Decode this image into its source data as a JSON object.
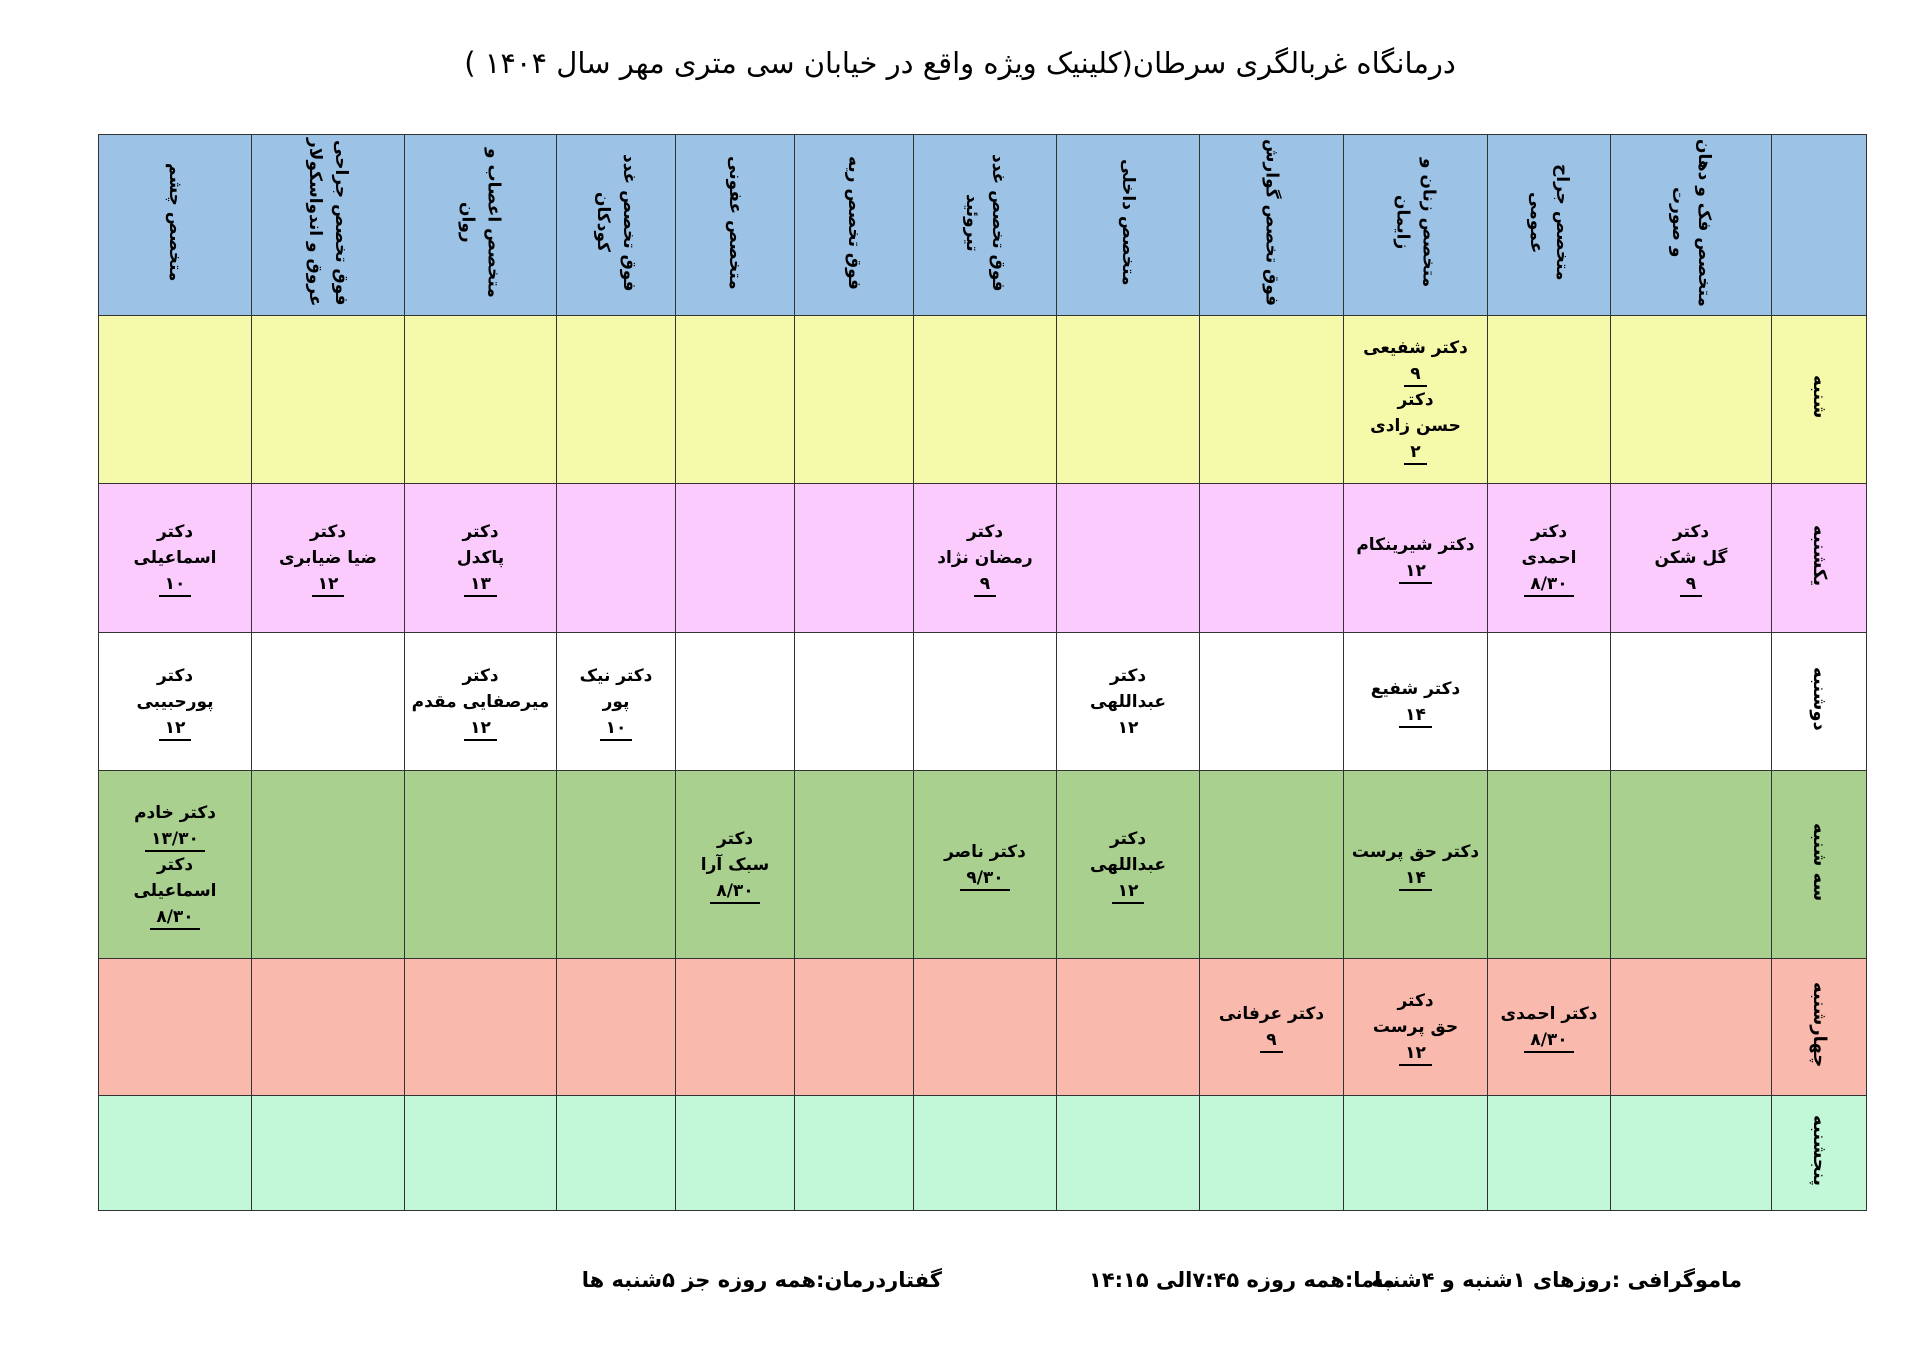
{
  "title": "درمانگاه غربالگری سرطان(کلینیک ویژه واقع در خیابان سی متری  مهر سال ۱۴۰۴  )",
  "headers": [
    "",
    "متخصص فک و دهان و صورت",
    "متخصص جراح عمومی",
    "متخصص زنان و زایمان",
    "فوق تخصص گوارش",
    "متخصص داخلی",
    "فوق تخصص غدد تیروئید",
    "فوق تخصص ریه",
    "متخصص عفونی",
    "فوق تخصص غدد کودکان",
    "متخصص اعصاب و روان",
    "فوق تخصص جراحی عروق و اندواسکولار",
    "متخصص چشم"
  ],
  "rows": [
    {
      "day": "شنبه",
      "cells": [
        [],
        [],
        [
          {
            "t": "دکتر شفیعی"
          },
          {
            "t": "۹",
            "u": true
          },
          {
            "t": "دکتر"
          },
          {
            "t": "حسن زادی"
          },
          {
            "t": "۲",
            "u": true
          }
        ],
        [],
        [],
        [],
        [],
        [],
        [],
        [],
        [],
        []
      ]
    },
    {
      "day": "یکشنبه",
      "cells": [
        [
          {
            "t": "دکتر"
          },
          {
            "t": "گل شکن"
          },
          {
            "t": "۹",
            "u": true
          }
        ],
        [
          {
            "t": "دکتر"
          },
          {
            "t": "احمدی"
          },
          {
            "t": "۸/۳۰",
            "u": true
          }
        ],
        [
          {
            "t": "دکتر شیرینکام"
          },
          {
            "t": "۱۲",
            "u": true
          }
        ],
        [],
        [],
        [
          {
            "t": "دکتر"
          },
          {
            "t": "رمضان نژاد"
          },
          {
            "t": "۹",
            "u": true
          }
        ],
        [],
        [],
        [],
        [
          {
            "t": "دکتر"
          },
          {
            "t": "پاکدل"
          },
          {
            "t": "۱۳",
            "u": true
          }
        ],
        [
          {
            "t": "دکتر"
          },
          {
            "t": "ضیا ضیابری"
          },
          {
            "t": "۱۲",
            "u": true
          }
        ],
        [
          {
            "t": "دکتر"
          },
          {
            "t": "اسماعیلی"
          },
          {
            "t": "۱۰",
            "u": true
          }
        ]
      ]
    },
    {
      "day": "دوشنبه",
      "cells": [
        [],
        [],
        [
          {
            "t": "دکتر شفیع"
          },
          {
            "t": "۱۴",
            "u": true
          }
        ],
        [],
        [
          {
            "t": "دکتر"
          },
          {
            "t": "عبداللهی"
          },
          {
            "t": "۱۲"
          }
        ],
        [],
        [],
        [],
        [
          {
            "t": "دکتر نیک"
          },
          {
            "t": "پور"
          },
          {
            "t": "۱۰",
            "u": true
          }
        ],
        [
          {
            "t": "دکتر"
          },
          {
            "t": "میرصفایی مقدم"
          },
          {
            "t": "۱۲",
            "u": true
          }
        ],
        [],
        [
          {
            "t": "دکتر"
          },
          {
            "t": "پورحبیبی"
          },
          {
            "t": "۱۲",
            "u": true
          }
        ]
      ]
    },
    {
      "day": "سه شنبه",
      "cells": [
        [],
        [],
        [
          {
            "t": "دکتر حق پرست"
          },
          {
            "t": "۱۴",
            "u": true
          }
        ],
        [],
        [
          {
            "t": "دکتر"
          },
          {
            "t": "عبداللهی"
          },
          {
            "t": "۱۲",
            "u": true
          }
        ],
        [
          {
            "t": "دکتر ناصر"
          },
          {
            "t": "۹/۳۰",
            "u": true
          }
        ],
        [],
        [
          {
            "t": "دکتر"
          },
          {
            "t": "سبک آرا"
          },
          {
            "t": "۸/۳۰",
            "u": true
          }
        ],
        [],
        [],
        [],
        [
          {
            "t": "دکتر خادم"
          },
          {
            "t": "۱۳/۳۰",
            "u": true
          },
          {
            "t": "دکتر"
          },
          {
            "t": "اسماعیلی"
          },
          {
            "t": "۸/۳۰",
            "u": true
          }
        ]
      ]
    },
    {
      "day": "چهارشنبه",
      "cells": [
        [],
        [
          {
            "t": "دکتر احمدی"
          },
          {
            "t": "۸/۳۰",
            "u": true
          }
        ],
        [
          {
            "t": "دکتر"
          },
          {
            "t": "حق پرست"
          },
          {
            "t": "۱۲",
            "u": true
          }
        ],
        [
          {
            "t": "دکتر عرفانی"
          },
          {
            "t": "۹",
            "u": true
          }
        ],
        [],
        [],
        [],
        [],
        [],
        [],
        [],
        []
      ]
    },
    {
      "day": "پنجشنبه",
      "cells": [
        [],
        [],
        [],
        [],
        [],
        [],
        [],
        [],
        [],
        [],
        [],
        []
      ]
    }
  ],
  "footer": {
    "mammography": "ماموگرافی :روزهای ۱شنبه و ۴شنبه",
    "midwife": "ماما:همه روزه  ۷:۴۵الی ۱۴:۱۵",
    "speech_therapy": "گفتاردرمان:همه روزه جز ۵شنبه ها"
  }
}
